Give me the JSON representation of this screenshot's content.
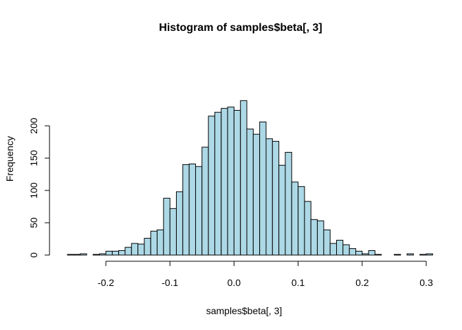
{
  "chart_data": {
    "type": "bar",
    "title": "Histogram of samples$beta[, 3]",
    "xlabel": "samples$beta[, 3]",
    "ylabel": "Frequency",
    "xlim": [
      -0.265,
      0.29
    ],
    "ylim": [
      0,
      240
    ],
    "x_ticks": [
      "-0.2",
      "-0.1",
      "0.0",
      "0.1",
      "0.2",
      "0.3"
    ],
    "x_tick_values": [
      -0.2,
      -0.1,
      0.0,
      0.1,
      0.2,
      0.3
    ],
    "y_ticks": [
      "0",
      "50",
      "100",
      "150",
      "200"
    ],
    "y_tick_values": [
      0,
      50,
      100,
      150,
      200
    ],
    "bin_width": 0.01,
    "bin_start": -0.26,
    "values": [
      1,
      1,
      2,
      0,
      1,
      2,
      6,
      6,
      7,
      12,
      18,
      17,
      26,
      37,
      39,
      88,
      72,
      98,
      140,
      141,
      137,
      167,
      215,
      221,
      227,
      229,
      224,
      239,
      195,
      187,
      206,
      180,
      176,
      139,
      159,
      113,
      106,
      83,
      55,
      53,
      39,
      18,
      23,
      16,
      10,
      6,
      2,
      7,
      1,
      0,
      0,
      1,
      0,
      2,
      0,
      1,
      2
    ],
    "bar_fill": "#add8e6",
    "bar_stroke": "#000000",
    "grid": false,
    "legend": false
  }
}
